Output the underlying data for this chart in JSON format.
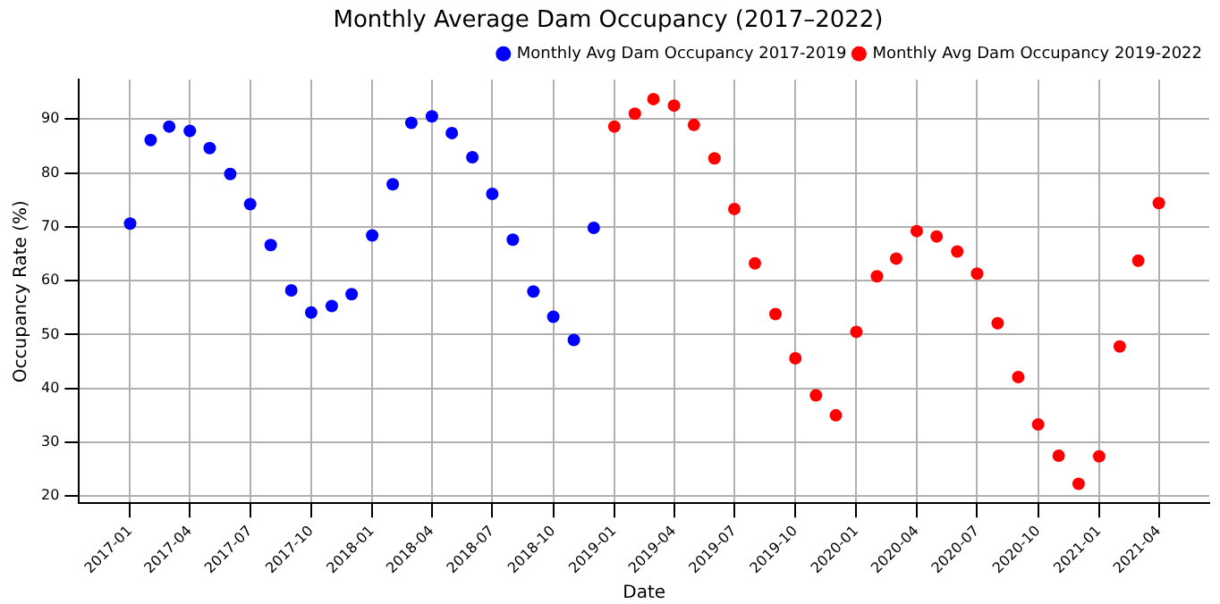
{
  "chart_data": {
    "type": "scatter",
    "title": "Monthly Average Dam Occupancy (2017–2022)",
    "xlabel": "Date",
    "ylabel": "Occupancy Rate (%)",
    "series": [
      {
        "name": "Monthly Avg Dam Occupancy 2017-2019",
        "color": "#0000ff",
        "x": [
          "2017-01",
          "2017-02",
          "2017-03",
          "2017-04",
          "2017-05",
          "2017-06",
          "2017-07",
          "2017-08",
          "2017-09",
          "2017-10",
          "2017-11",
          "2017-12",
          "2018-01",
          "2018-02",
          "2018-03",
          "2018-04",
          "2018-05",
          "2018-06",
          "2018-07",
          "2018-08",
          "2018-09",
          "2018-10",
          "2018-11",
          "2018-12"
        ],
        "values": [
          70.6,
          86.1,
          88.6,
          87.8,
          84.6,
          79.8,
          74.2,
          66.6,
          58.2,
          54.1,
          55.3,
          57.5,
          68.4,
          77.9,
          89.3,
          90.5,
          87.4,
          82.9,
          76.1,
          67.6,
          58.0,
          53.3,
          49.0,
          69.8
        ]
      },
      {
        "name": "Monthly Avg Dam Occupancy 2019-2022",
        "color": "#ff0000",
        "x": [
          "2019-01",
          "2019-02",
          "2019-03",
          "2019-04",
          "2019-05",
          "2019-06",
          "2019-07",
          "2019-08",
          "2019-09",
          "2019-10",
          "2019-11",
          "2019-12",
          "2020-01",
          "2020-02",
          "2020-03",
          "2020-04",
          "2020-05",
          "2020-06",
          "2020-07",
          "2020-08",
          "2020-09",
          "2020-10",
          "2020-11",
          "2020-12",
          "2021-01",
          "2021-02",
          "2021-03",
          "2021-04"
        ],
        "values": [
          88.6,
          91.0,
          93.7,
          92.5,
          88.9,
          82.7,
          73.3,
          63.2,
          53.8,
          45.6,
          38.7,
          35.0,
          50.5,
          60.8,
          64.1,
          69.2,
          68.2,
          65.4,
          61.3,
          52.1,
          42.1,
          33.3,
          27.5,
          22.3,
          27.4,
          47.8,
          63.7,
          74.4
        ]
      }
    ],
    "xlim": [
      "2016-10-16",
      "2021-06-16"
    ],
    "xticks": [
      "2017-01",
      "2017-04",
      "2017-07",
      "2017-10",
      "2018-01",
      "2018-04",
      "2018-07",
      "2018-10",
      "2019-01",
      "2019-04",
      "2019-07",
      "2019-10",
      "2020-01",
      "2020-04",
      "2020-07",
      "2020-10",
      "2021-01",
      "2021-04"
    ],
    "ylim": [
      18.7,
      97.3
    ],
    "yticks": [
      20,
      30,
      40,
      50,
      60,
      70,
      80,
      90
    ],
    "grid": true,
    "legend": "top right",
    "marker": "circle"
  }
}
